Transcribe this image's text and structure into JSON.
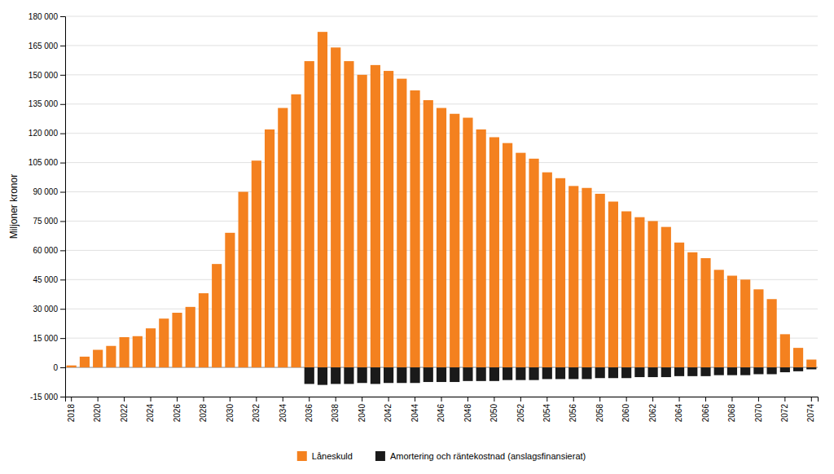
{
  "chart_data": {
    "type": "bar",
    "stacked": true,
    "y_label": "Miljoner kronor",
    "categories": [
      "2018",
      null,
      "2020",
      null,
      "2022",
      null,
      "2024",
      null,
      "2026",
      null,
      "2028",
      null,
      "2030",
      null,
      "2032",
      null,
      "2034",
      null,
      "2036",
      null,
      "2038",
      null,
      "2040",
      null,
      "2042",
      null,
      "2044",
      null,
      "2046",
      null,
      "2048",
      null,
      "2050",
      null,
      "2052",
      null,
      "2054",
      null,
      "2056",
      null,
      "2058",
      null,
      "2060",
      null,
      "2062",
      null,
      "2064",
      null,
      "2066",
      null,
      "2068",
      null,
      "2070",
      null,
      "2072",
      null,
      "2074"
    ],
    "series": [
      {
        "name": "Låneskuld",
        "color": "#F4811F",
        "values": [
          1000,
          5500,
          9000,
          11000,
          15500,
          16000,
          20000,
          25000,
          28000,
          31000,
          38000,
          53000,
          69000,
          90000,
          106000,
          122000,
          133000,
          140000,
          157000,
          172000,
          164000,
          157000,
          150000,
          155000,
          152000,
          148000,
          142000,
          137000,
          133000,
          130000,
          128000,
          122000,
          118000,
          115000,
          110000,
          107000,
          100000,
          97000,
          93000,
          92000,
          89000,
          85000,
          80000,
          77000,
          75000,
          72000,
          64000,
          59000,
          56000,
          50000,
          47000,
          45000,
          40000,
          35000,
          17000,
          10000,
          4000
        ]
      },
      {
        "name": "Amortering och räntekostnad (anslagsfinansierat)",
        "color": "#1A1A1A",
        "values": [
          0,
          0,
          0,
          0,
          0,
          0,
          0,
          0,
          0,
          0,
          0,
          0,
          0,
          0,
          0,
          0,
          0,
          0,
          -8500,
          -9000,
          -8500,
          -8500,
          -8000,
          -8500,
          -8000,
          -8000,
          -8000,
          -7500,
          -7500,
          -7500,
          -7000,
          -7000,
          -7000,
          -6500,
          -6500,
          -6500,
          -6000,
          -6000,
          -6000,
          -6000,
          -5500,
          -5500,
          -5500,
          -5000,
          -5000,
          -5000,
          -4500,
          -4500,
          -4500,
          -4000,
          -4000,
          -4000,
          -3500,
          -3500,
          -2500,
          -2000,
          -1000
        ]
      }
    ],
    "ylim": [
      -15000,
      180000
    ],
    "yticks": [
      {
        "value": -15000,
        "label": "-15 000"
      },
      0,
      {
        "value": 15000,
        "label": "15 000"
      },
      {
        "value": 30000,
        "label": "30 000"
      },
      {
        "value": 45000,
        "label": "45 000"
      },
      {
        "value": 60000,
        "label": "60 000"
      },
      {
        "value": 75000,
        "label": "75 000"
      },
      {
        "value": 90000,
        "label": "90 000"
      },
      {
        "value": 105000,
        "label": "105 000"
      },
      {
        "value": 120000,
        "label": "120 000"
      },
      {
        "value": 135000,
        "label": "135 000"
      },
      {
        "value": 150000,
        "label": "150 000"
      },
      {
        "value": 165000,
        "label": "165 000"
      },
      {
        "value": 180000,
        "label": "180 000"
      }
    ],
    "grid": true,
    "legend": "bottom"
  }
}
